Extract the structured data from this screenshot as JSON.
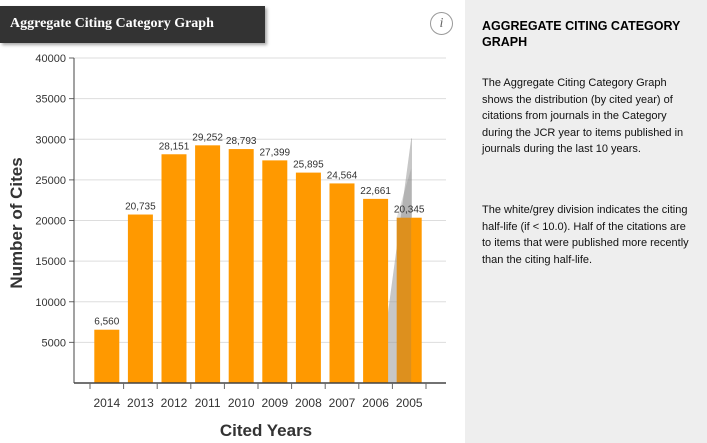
{
  "header": {
    "title": "Aggregate Citing Category Graph",
    "info_icon": "info-icon"
  },
  "side": {
    "title": "AGGREGATE CITING CATEGORY GRAPH",
    "para1": "The Aggregate Citing Category Graph shows the distribution (by cited year) of citations from journals in the Category during the  JCR year to items published in journals during the last 10 years.",
    "para2": "The white/grey division indicates the citing half-life (if < 10.0). Half of the citations are to items that were published more recently than the citing half-life."
  },
  "chart_data": {
    "type": "bar",
    "xlabel": "Cited Years",
    "ylabel": "Number of Cites",
    "categories": [
      "2014",
      "2013",
      "2012",
      "2011",
      "2010",
      "2009",
      "2008",
      "2007",
      "2006",
      "2005"
    ],
    "values": [
      6560,
      20735,
      28151,
      29252,
      28793,
      27399,
      25895,
      24564,
      22661,
      20345
    ],
    "value_labels": [
      "6,560",
      "20,735",
      "28,151",
      "29,252",
      "28,793",
      "27,399",
      "25,895",
      "24,564",
      "22,661",
      "20,345"
    ],
    "y_ticks": [
      5000,
      10000,
      15000,
      20000,
      25000,
      30000,
      35000,
      40000
    ],
    "ylim": [
      0,
      40000
    ],
    "bar_color": "#ff9900",
    "halflife_shade_color": "#999999",
    "grid": true
  }
}
